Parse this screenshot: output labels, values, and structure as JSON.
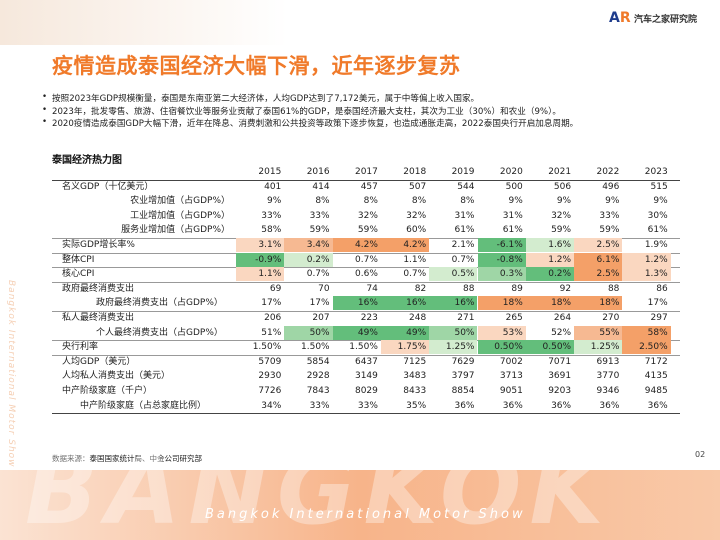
{
  "header": {
    "title": "疫情造成泰国经济大幅下滑，近年逐步复苏",
    "bullets": [
      "按照2023年GDP规模衡量，泰国是东南亚第二大经济体，人均GDP达到了7,172美元，属于中等偏上收入国家。",
      "2023年，批发零售、旅游、住宿餐饮业等服务业贡献了泰国61%的GDP，是泰国经济最大支柱，其次为工业（30%）和农业（9%）。",
      "2020疫情造成泰国GDP大幅下滑，近年在降息、消费刺激和公共投资等政策下逐步恢复，也造成通胀走高，2022泰国央行开启加息周期。"
    ]
  },
  "logo": "汽车之家研究院",
  "side_text": "Bangkok International Motor Show",
  "banner": {
    "watermark": "BANGKOK",
    "text": "Bangkok International Motor Show"
  },
  "table": {
    "title": "泰国经济热力图",
    "columns": [
      "2015",
      "2016",
      "2017",
      "2018",
      "2019",
      "2020",
      "2021",
      "2022",
      "2023"
    ],
    "rows": [
      {
        "label": "名义GDP（十亿美元）",
        "values": [
          "401",
          "414",
          "457",
          "507",
          "544",
          "500",
          "506",
          "496",
          "515"
        ]
      },
      {
        "label": "农业增加值（占GDP%）",
        "values": [
          "9%",
          "8%",
          "8%",
          "8%",
          "8%",
          "9%",
          "9%",
          "9%",
          "9%"
        ]
      },
      {
        "label": "工业增加值（占GDP%）",
        "values": [
          "33%",
          "33%",
          "32%",
          "32%",
          "31%",
          "31%",
          "32%",
          "33%",
          "30%"
        ]
      },
      {
        "label": "服务业增加值（占GDP%）",
        "values": [
          "58%",
          "59%",
          "59%",
          "60%",
          "61%",
          "61%",
          "59%",
          "59%",
          "61%"
        ]
      },
      {
        "label": "实际GDP增长率%",
        "values": [
          "3.1%",
          "3.4%",
          "4.2%",
          "4.2%",
          "2.1%",
          "-6.1%",
          "1.6%",
          "2.5%",
          "1.9%"
        ]
      },
      {
        "label": "整体CPI",
        "values": [
          "-0.9%",
          "0.2%",
          "0.7%",
          "1.1%",
          "0.7%",
          "-0.8%",
          "1.2%",
          "6.1%",
          "1.2%"
        ]
      },
      {
        "label": "核心CPI",
        "values": [
          "1.1%",
          "0.7%",
          "0.6%",
          "0.7%",
          "0.5%",
          "0.3%",
          "0.2%",
          "2.5%",
          "1.3%"
        ]
      },
      {
        "label": "政府最终消费支出",
        "values": [
          "69",
          "70",
          "74",
          "82",
          "88",
          "89",
          "92",
          "88",
          "86"
        ]
      },
      {
        "label": "政府最终消费支出（占GDP%）",
        "values": [
          "17%",
          "17%",
          "16%",
          "16%",
          "16%",
          "18%",
          "18%",
          "18%",
          "17%"
        ]
      },
      {
        "label": "私人最终消费支出",
        "values": [
          "206",
          "207",
          "223",
          "248",
          "271",
          "265",
          "264",
          "270",
          "297"
        ]
      },
      {
        "label": "个人最终消费支出（占GDP%）",
        "values": [
          "51%",
          "50%",
          "49%",
          "49%",
          "50%",
          "53%",
          "52%",
          "55%",
          "58%"
        ]
      },
      {
        "label": "央行利率",
        "values": [
          "1.50%",
          "1.50%",
          "1.50%",
          "1.75%",
          "1.25%",
          "0.50%",
          "0.50%",
          "1.25%",
          "2.50%"
        ]
      },
      {
        "label": "人均GDP（美元）",
        "values": [
          "5709",
          "5854",
          "6437",
          "7125",
          "7629",
          "7002",
          "7071",
          "6913",
          "7172"
        ]
      },
      {
        "label": "人均私人消费支出（美元）",
        "values": [
          "2930",
          "2928",
          "3149",
          "3483",
          "3797",
          "3713",
          "3691",
          "3770",
          "4135"
        ]
      },
      {
        "label": "中产阶级家庭（千户）",
        "values": [
          "7726",
          "7843",
          "8029",
          "8433",
          "8854",
          "9051",
          "9203",
          "9346",
          "9485"
        ]
      },
      {
        "label": "中产阶级家庭（占总家庭比例）",
        "values": [
          "34%",
          "33%",
          "33%",
          "35%",
          "36%",
          "36%",
          "36%",
          "36%",
          "36%"
        ]
      }
    ]
  },
  "source": "数据来源：泰国国家统计局、中金公司研究部",
  "page": "02"
}
